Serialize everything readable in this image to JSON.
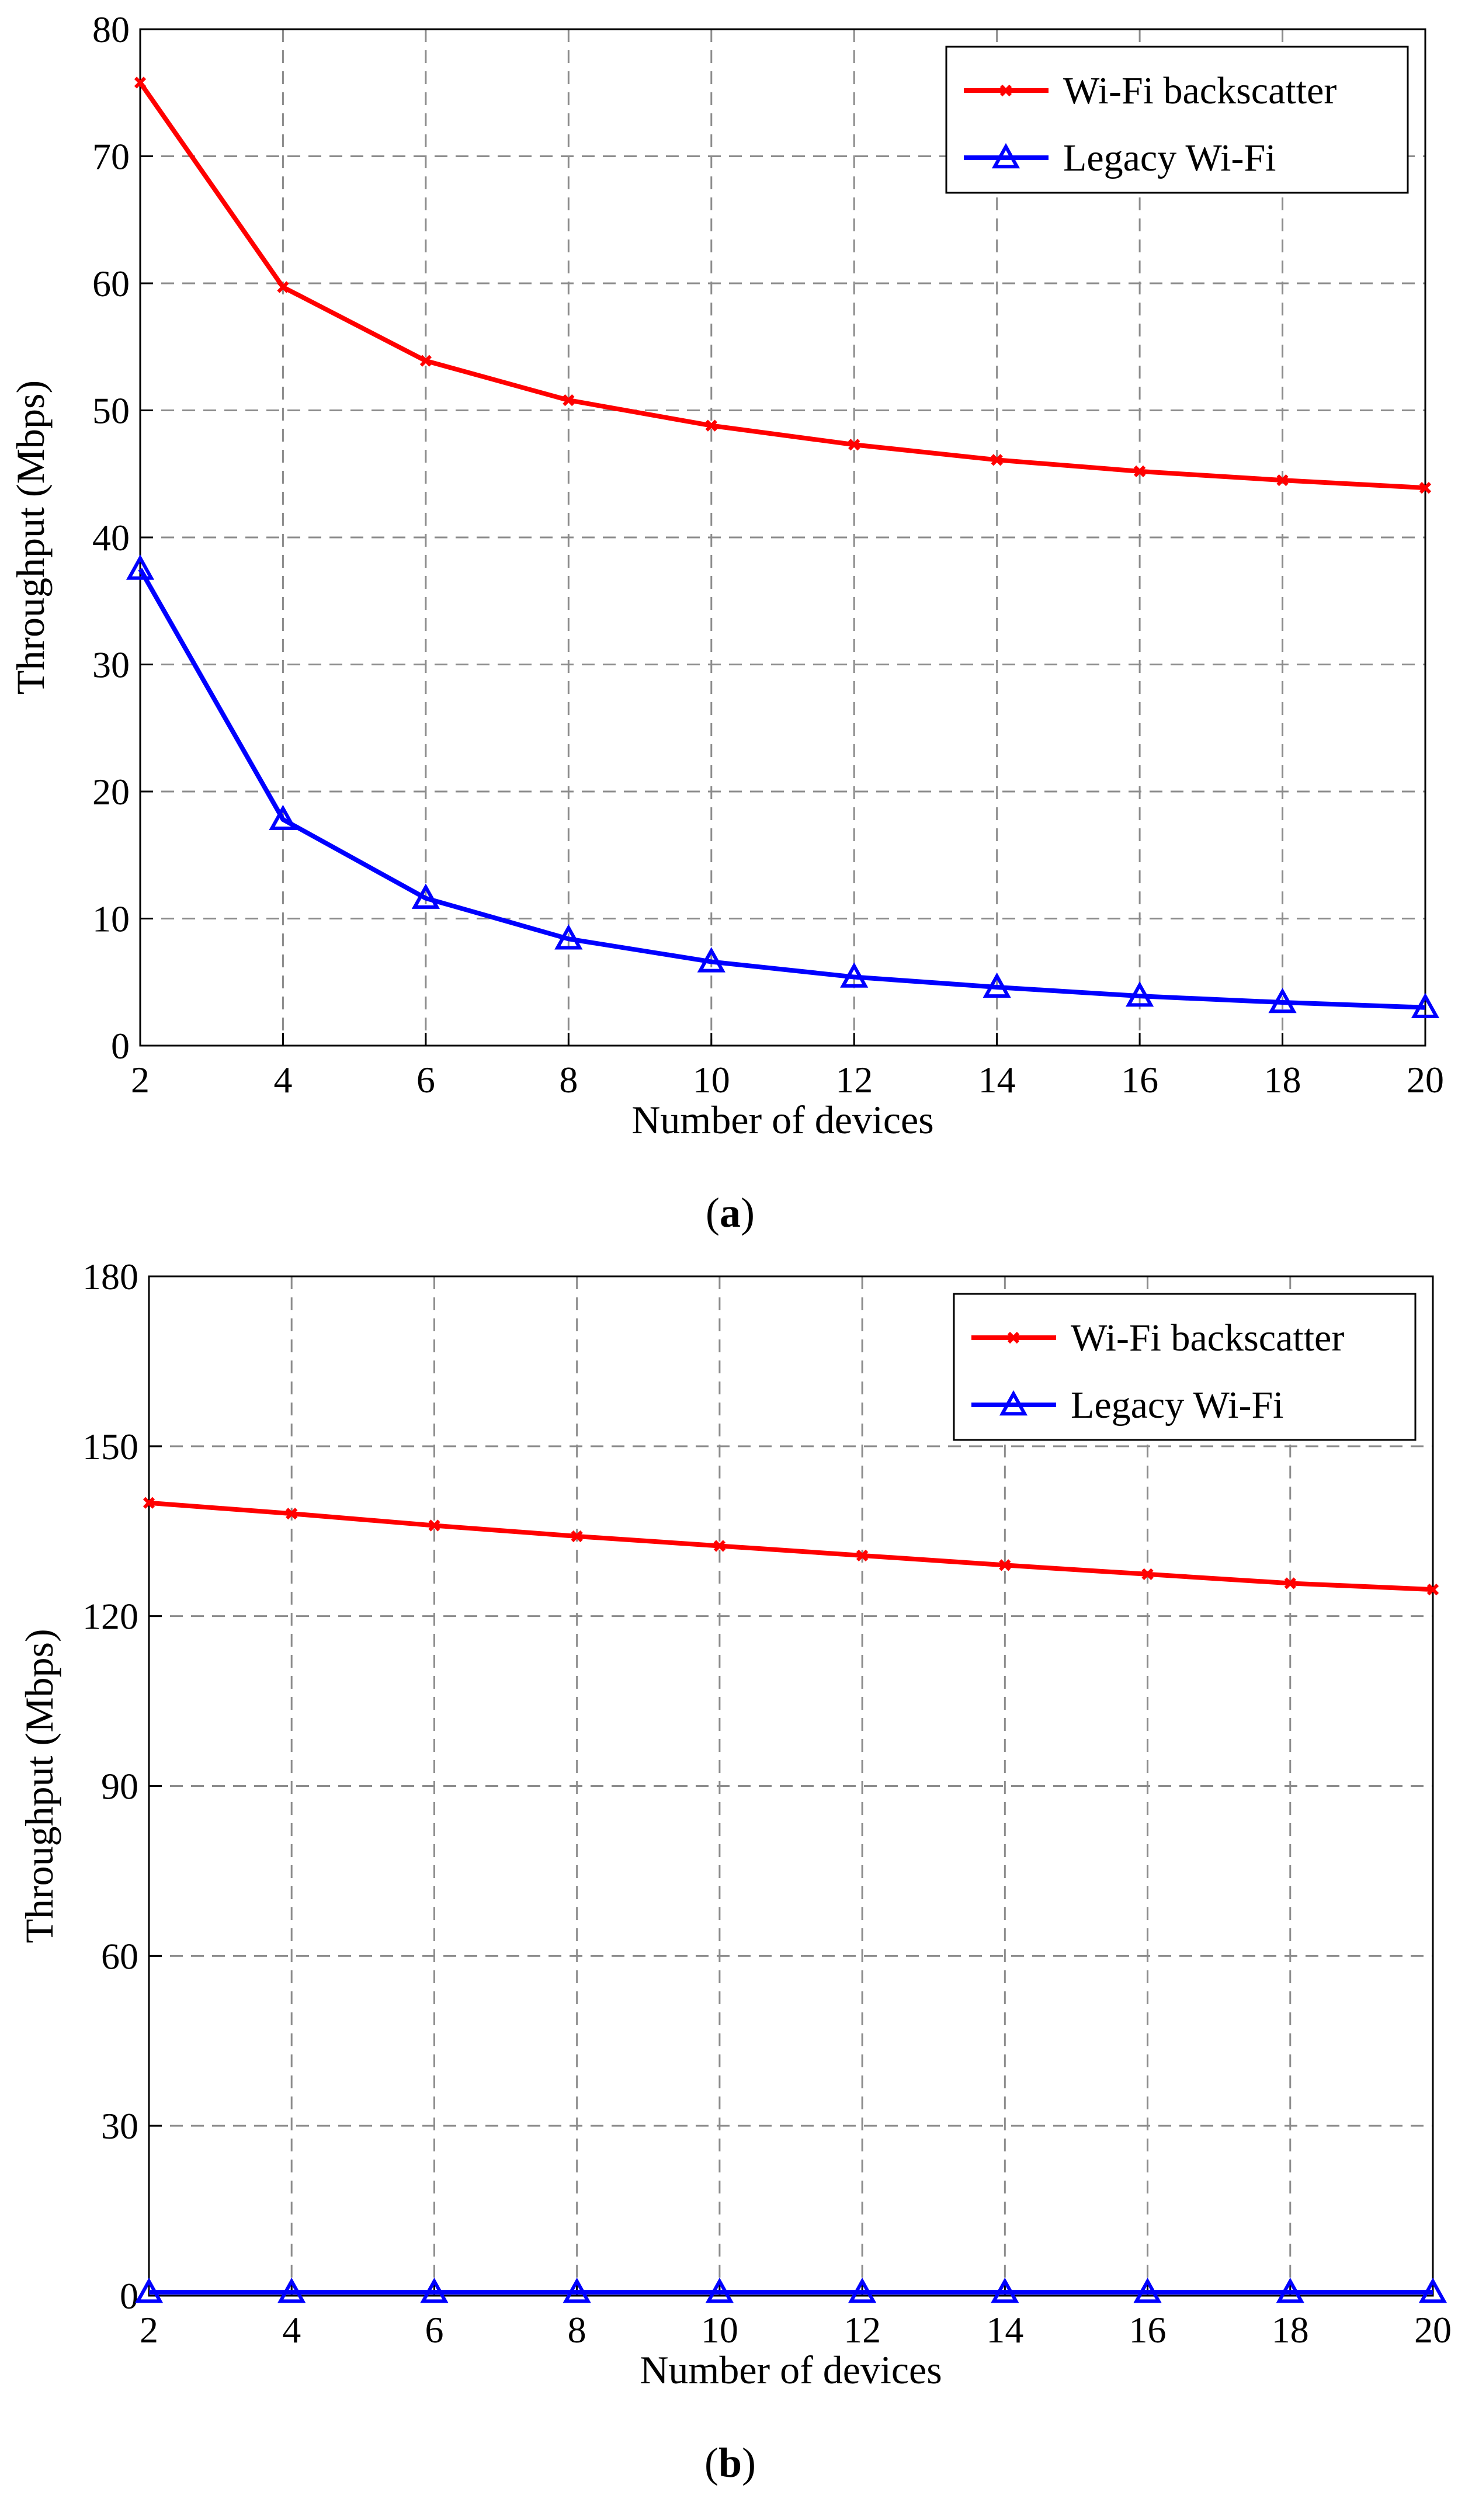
{
  "chart_data": [
    {
      "type": "line",
      "panel_label": "a",
      "title": "",
      "xlabel": "Number of devices",
      "ylabel": "Throughput (Mbps)",
      "x": [
        2,
        4,
        6,
        8,
        10,
        12,
        14,
        16,
        18,
        20
      ],
      "xlim": [
        2,
        20
      ],
      "ylim": [
        0,
        80
      ],
      "xticks": [
        2,
        4,
        6,
        8,
        10,
        12,
        14,
        16,
        18,
        20
      ],
      "yticks": [
        0,
        10,
        20,
        30,
        40,
        50,
        60,
        70,
        80
      ],
      "grid": true,
      "legend_position": "top-right",
      "series": [
        {
          "name": "Wi-Fi backscatter",
          "color": "#ff0000",
          "marker": "x",
          "values": [
            75.8,
            59.7,
            53.9,
            50.8,
            48.8,
            47.3,
            46.1,
            45.2,
            44.5,
            43.9
          ]
        },
        {
          "name": "Legacy Wi-Fi",
          "color": "#0000ff",
          "marker": "triangle",
          "values": [
            37.5,
            17.8,
            11.6,
            8.4,
            6.6,
            5.4,
            4.6,
            3.9,
            3.4,
            3.0
          ]
        }
      ]
    },
    {
      "type": "line",
      "panel_label": "b",
      "title": "",
      "xlabel": "Number of devices",
      "ylabel": "Throughput (Mbps)",
      "x": [
        2,
        4,
        6,
        8,
        10,
        12,
        14,
        16,
        18,
        20
      ],
      "xlim": [
        2,
        20
      ],
      "ylim": [
        0,
        180
      ],
      "xticks": [
        2,
        4,
        6,
        8,
        10,
        12,
        14,
        16,
        18,
        20
      ],
      "yticks": [
        0,
        30,
        60,
        90,
        120,
        150,
        180
      ],
      "grid": true,
      "legend_position": "top-right",
      "series": [
        {
          "name": "Wi-Fi backscatter",
          "color": "#ff0000",
          "marker": "x",
          "values": [
            140.0,
            138.1,
            136.0,
            134.1,
            132.4,
            130.7,
            129.0,
            127.4,
            125.8,
            124.7
          ]
        },
        {
          "name": "Legacy Wi-Fi",
          "color": "#0000ff",
          "marker": "triangle",
          "values": [
            0.6,
            0.6,
            0.6,
            0.6,
            0.6,
            0.6,
            0.6,
            0.6,
            0.6,
            0.6
          ]
        }
      ]
    }
  ]
}
